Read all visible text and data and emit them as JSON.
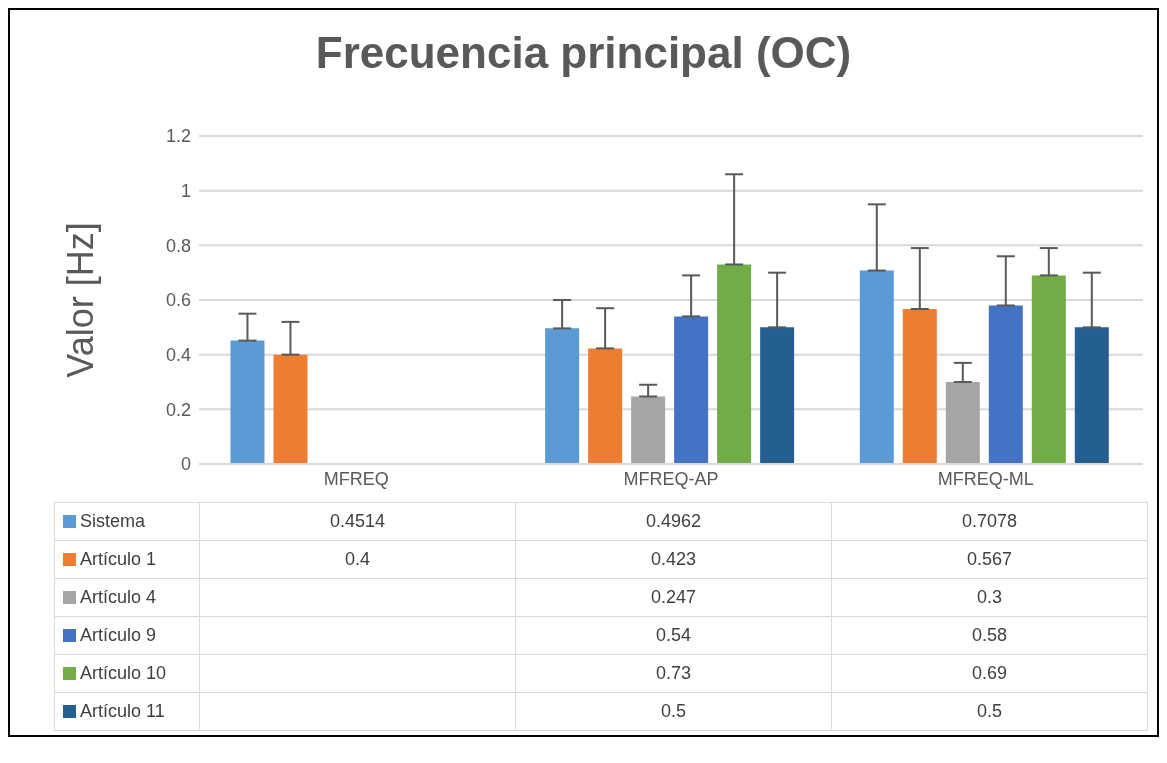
{
  "chart_data": {
    "type": "bar",
    "title": "Frecuencia principal (OC)",
    "ylabel": "Valor [Hz]",
    "categories": [
      "MFREQ",
      "MFREQ-AP",
      "MFREQ-ML"
    ],
    "series": [
      {
        "name": "Sistema",
        "color": "#5b9bd5",
        "values": [
          0.4514,
          0.4962,
          0.7078
        ],
        "errors": [
          [
            0.4514,
            0.55
          ],
          [
            0.4962,
            0.6
          ],
          [
            0.7078,
            0.95
          ]
        ]
      },
      {
        "name": "Artículo 1",
        "color": "#ed7d31",
        "values": [
          0.4,
          0.423,
          0.567
        ],
        "errors": [
          [
            0.4,
            0.52
          ],
          [
            0.423,
            0.57
          ],
          [
            0.567,
            0.79
          ]
        ]
      },
      {
        "name": "Artículo 4",
        "color": "#a5a5a5",
        "values": [
          null,
          0.247,
          0.3
        ],
        "errors": [
          null,
          [
            0.247,
            0.29
          ],
          [
            0.3,
            0.37
          ]
        ]
      },
      {
        "name": "Artículo 9",
        "color": "#4472c4",
        "values": [
          null,
          0.54,
          0.58
        ],
        "errors": [
          null,
          [
            0.54,
            0.69
          ],
          [
            0.58,
            0.76
          ]
        ]
      },
      {
        "name": "Artículo 10",
        "color": "#70ad47",
        "values": [
          null,
          0.73,
          0.69
        ],
        "errors": [
          null,
          [
            0.73,
            1.06
          ],
          [
            0.69,
            0.79
          ]
        ]
      },
      {
        "name": "Artículo 11",
        "color": "#255e91",
        "values": [
          null,
          0.5,
          0.5
        ],
        "errors": [
          null,
          [
            0.5,
            0.7
          ],
          [
            0.5,
            0.7
          ]
        ]
      }
    ],
    "ylim": [
      0,
      1.2
    ],
    "yticks": [
      0,
      0.2,
      0.4,
      0.6,
      0.8,
      1,
      1.2
    ],
    "grid": "y",
    "legend": "bottom",
    "data_labels": true
  }
}
